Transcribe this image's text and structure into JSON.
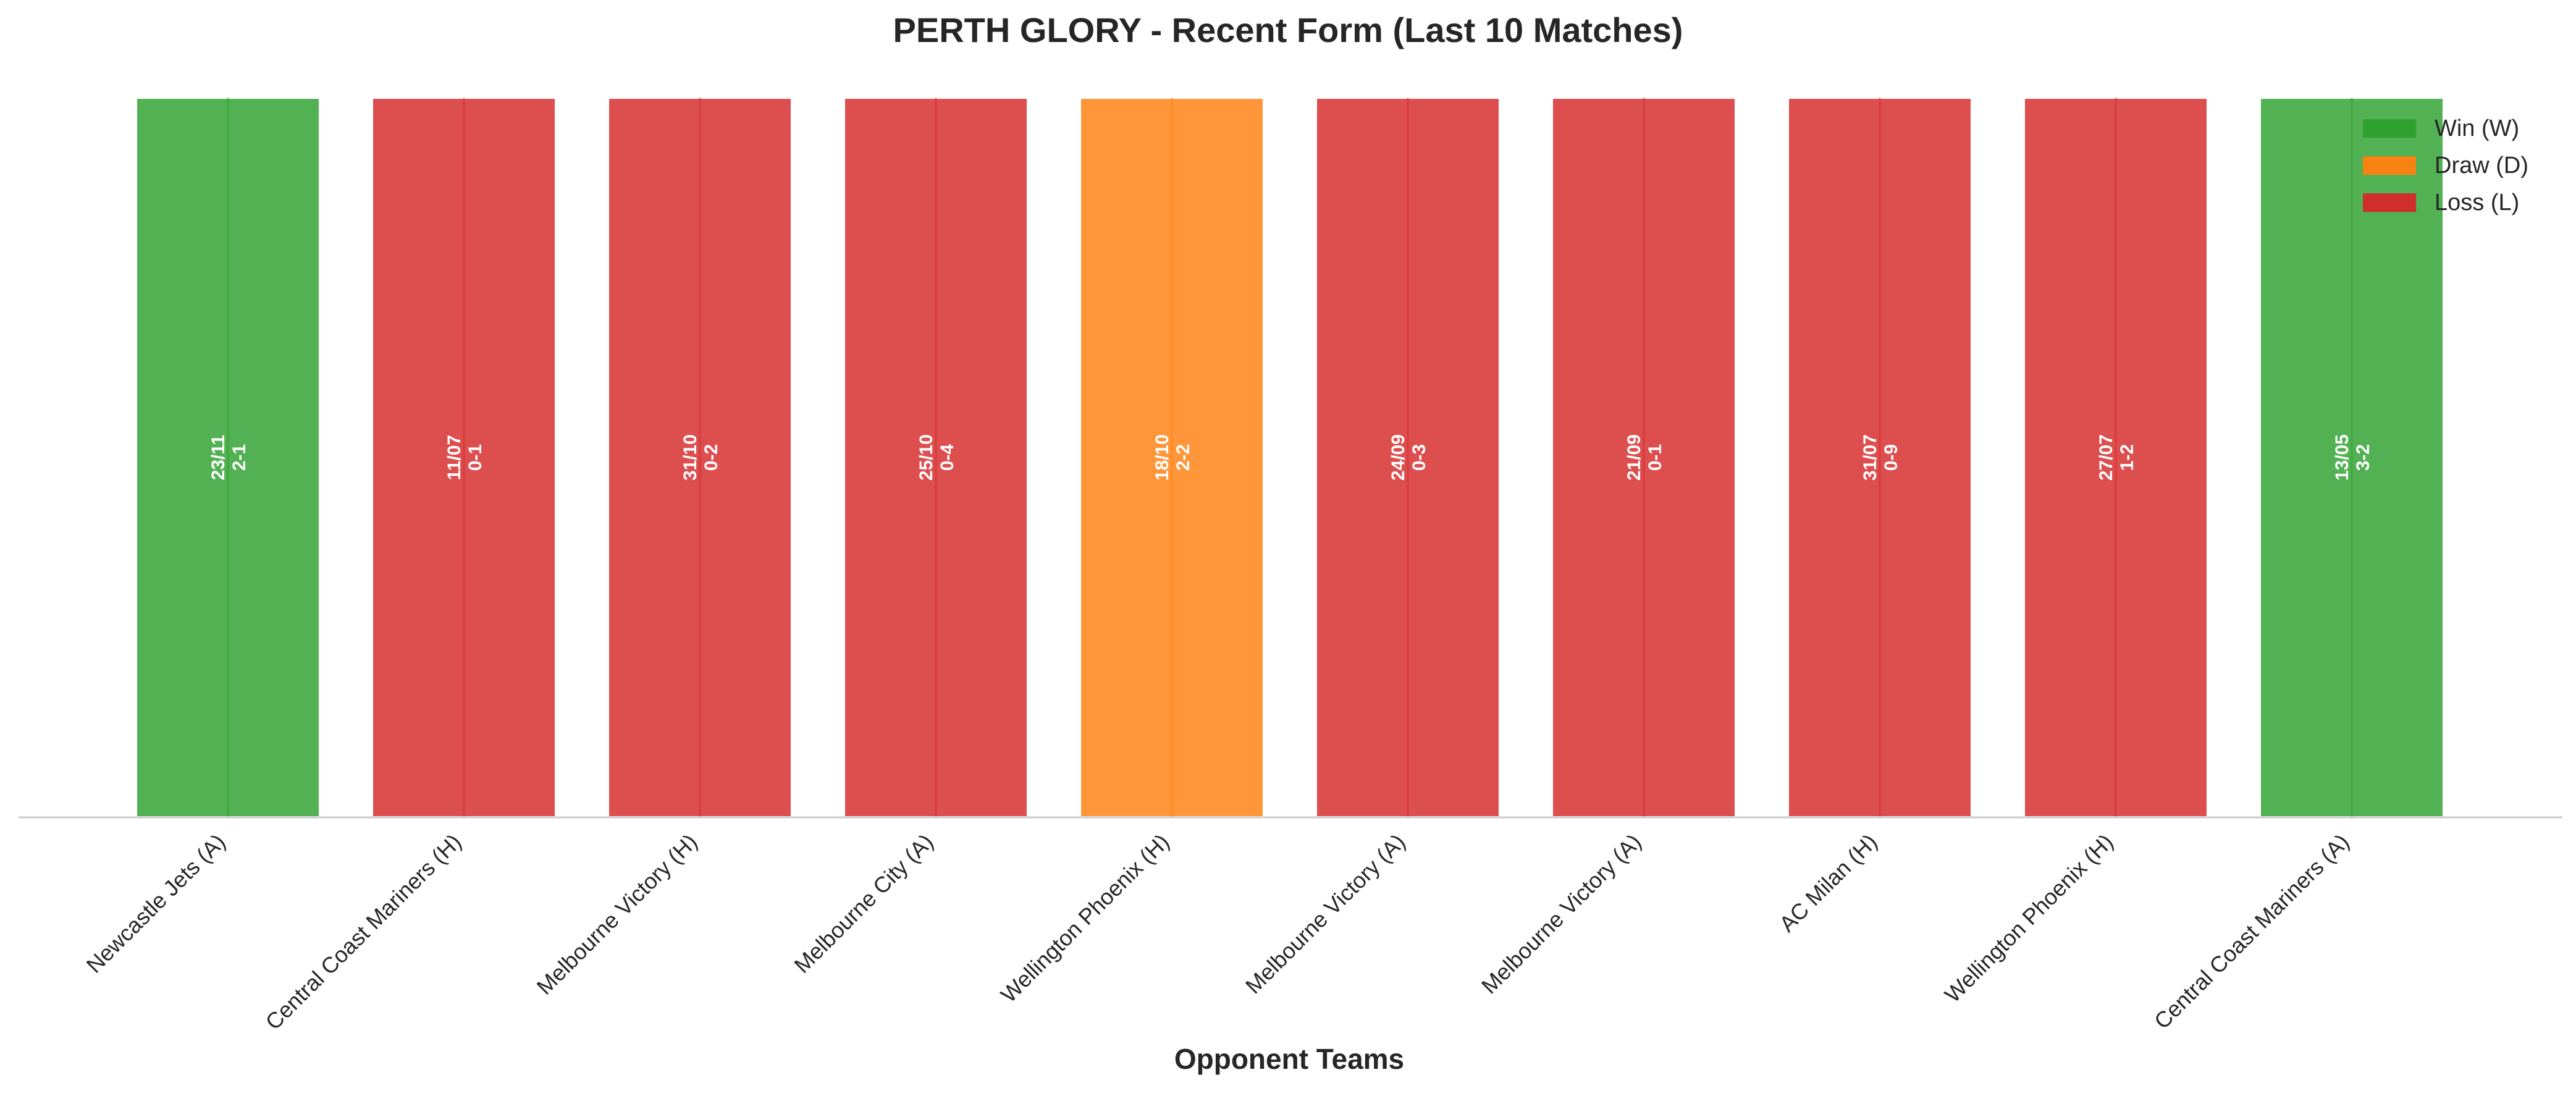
{
  "chart_data": {
    "type": "bar",
    "title": "PERTH GLORY - Recent Form (Last 10 Matches)",
    "xlabel": "Opponent Teams",
    "ylabel": "",
    "categories": [
      "Newcastle Jets (A)",
      "Central Coast Mariners (H)",
      "Melbourne Victory (H)",
      "Melbourne City (A)",
      "Wellington Phoenix (H)",
      "Melbourne Victory (A)",
      "Melbourne Victory (A)",
      "AC Milan (H)",
      "Wellington Phoenix (H)",
      "Central Coast Mariners (A)"
    ],
    "values": [
      1,
      1,
      1,
      1,
      1,
      1,
      1,
      1,
      1,
      1
    ],
    "results": [
      "W",
      "L",
      "L",
      "L",
      "D",
      "L",
      "L",
      "L",
      "L",
      "W"
    ],
    "dates": [
      "23/11",
      "11/07",
      "31/10",
      "25/10",
      "18/10",
      "24/09",
      "21/09",
      "31/07",
      "27/07",
      "13/05"
    ],
    "scores": [
      "2-1",
      "0-1",
      "0-2",
      "0-4",
      "2-2",
      "0-3",
      "0-1",
      "0-9",
      "1-2",
      "3-2"
    ],
    "ylim": [
      0,
      1
    ],
    "grid": false,
    "legend": {
      "placement": "top-right",
      "entries": [
        {
          "key": "W",
          "label": "Win (W)",
          "color": "#2ca02c"
        },
        {
          "key": "D",
          "label": "Draw (D)",
          "color": "#ff7f0e"
        },
        {
          "key": "L",
          "label": "Loss (L)",
          "color": "#d62728"
        }
      ]
    },
    "colors": {
      "W": "#2ca02c",
      "D": "#ff7f0e",
      "L": "#d62728"
    }
  }
}
